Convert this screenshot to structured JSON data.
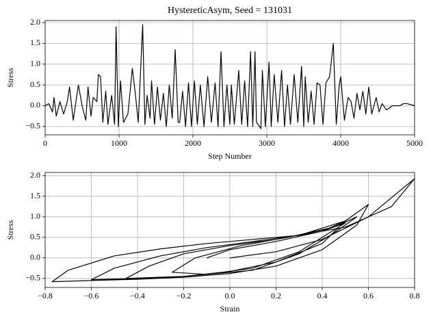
{
  "chart_data": [
    {
      "type": "line",
      "title": "HystereticAsym, Seed = 131031",
      "xlabel": "Step Number",
      "ylabel": "Stress",
      "color": "#000000",
      "grid": true,
      "x": [
        0,
        50,
        100,
        120,
        150,
        200,
        250,
        300,
        330,
        380,
        450,
        500,
        550,
        580,
        620,
        650,
        700,
        720,
        750,
        780,
        820,
        850,
        900,
        940,
        960,
        990,
        1020,
        1060,
        1120,
        1180,
        1220,
        1260,
        1320,
        1350,
        1380,
        1420,
        1440,
        1480,
        1520,
        1560,
        1600,
        1640,
        1680,
        1720,
        1760,
        1800,
        1820,
        1860,
        1900,
        1940,
        1980,
        2020,
        2060,
        2100,
        2150,
        2200,
        2250,
        2300,
        2340,
        2380,
        2420,
        2460,
        2500,
        2520,
        2560,
        2620,
        2660,
        2700,
        2740,
        2780,
        2810,
        2840,
        2860,
        2900,
        2920,
        2940,
        2980,
        3030,
        3060,
        3100,
        3150,
        3200,
        3240,
        3280,
        3320,
        3370,
        3420,
        3470,
        3500,
        3520,
        3560,
        3600,
        3640,
        3680,
        3720,
        3760,
        3800,
        3850,
        3900,
        3940,
        3980,
        4000,
        4050,
        4100,
        4140,
        4180,
        4220,
        4260,
        4300,
        4340,
        4380,
        4420,
        4480,
        4520,
        4560,
        4620,
        4700,
        4800,
        4850,
        4900,
        5000
      ],
      "values": [
        0,
        0.05,
        -0.15,
        0.2,
        -0.25,
        0.1,
        -0.2,
        0.1,
        0.45,
        -0.35,
        0.5,
        0,
        -0.35,
        0.45,
        -0.25,
        0.2,
        0.1,
        0.75,
        0.7,
        -0.4,
        0.35,
        -0.45,
        0.25,
        -0.45,
        1.9,
        -0.5,
        0.6,
        -0.4,
        -0.2,
        0.9,
        0.3,
        -0.4,
        1.95,
        -0.45,
        0.25,
        -0.3,
        0.6,
        -0.45,
        0.45,
        -0.35,
        0.3,
        -0.5,
        0.5,
        -0.3,
        1.35,
        -0.4,
        -0.4,
        0.35,
        -0.5,
        0.55,
        -0.5,
        0.6,
        -0.45,
        0.5,
        -0.5,
        0.7,
        -0.4,
        0.55,
        -0.5,
        1.3,
        -0.5,
        0.5,
        -0.45,
        0.5,
        -0.45,
        0.85,
        -0.45,
        0.6,
        -0.5,
        1.3,
        -0.5,
        1.3,
        -0.4,
        -0.5,
        -0.55,
        0.85,
        -0.5,
        1.05,
        -0.5,
        0.75,
        -0.4,
        0.85,
        -0.5,
        0.5,
        -0.45,
        0.75,
        -0.4,
        0.95,
        -0.5,
        0.7,
        -0.4,
        0.35,
        -0.45,
        0.55,
        0.5,
        -0.45,
        0.55,
        0.7,
        1.5,
        -0.45,
        0.5,
        0.7,
        -0.35,
        0.2,
        0.1,
        -0.3,
        0.3,
        -0.1,
        0.35,
        -0.2,
        0.45,
        -0.2,
        0.2,
        -0.15,
        0.05,
        -0.1,
        0,
        0,
        0.05,
        0.05,
        0
      ],
      "xlim": [
        0,
        5000
      ],
      "xticks": [
        0,
        1000,
        2000,
        3000,
        4000,
        5000
      ],
      "ylim": [
        -0.7,
        2.05
      ],
      "yticks": [
        {
          "value": -0.5,
          "label": "−0.5"
        },
        {
          "value": 0,
          "label": "0.0"
        },
        0.5,
        {
          "value": 1,
          "label": "1.0"
        },
        1.5,
        {
          "value": 2,
          "label": "2.0"
        }
      ]
    },
    {
      "type": "line",
      "xlabel": "Strain",
      "ylabel": "Stress",
      "color": "#000000",
      "grid": true,
      "x": [
        0,
        0.2,
        0.4,
        0.6,
        0.8,
        0.7,
        0.5,
        0.3,
        0.1,
        -0.1,
        -0.3,
        -0.5,
        -0.7,
        -0.77,
        -0.6,
        -0.4,
        -0.2,
        0,
        0.2,
        0.4,
        0.55,
        0.6,
        0.5,
        0.3,
        0.1,
        -0.1,
        -0.3,
        -0.5,
        -0.6,
        -0.4,
        -0.2,
        0,
        0.2,
        0.4,
        0.5,
        0.42,
        0.2,
        0,
        -0.2,
        -0.35,
        -0.45,
        -0.2,
        0.1,
        0.3,
        0.45,
        0.55,
        0.45,
        0.25,
        0.05,
        -0.15,
        -0.25,
        -0.1,
        0.1,
        0.3,
        0.5,
        0.4,
        0.2,
        0,
        -0.1
      ],
      "values": [
        0,
        0.15,
        0.45,
        1.0,
        1.93,
        1.25,
        0.75,
        0.55,
        0.45,
        0.35,
        0.22,
        0.05,
        -0.3,
        -0.58,
        -0.55,
        -0.52,
        -0.47,
        -0.38,
        -0.2,
        0.2,
        0.8,
        1.3,
        0.9,
        0.55,
        0.4,
        0.25,
        0.05,
        -0.25,
        -0.53,
        -0.5,
        -0.45,
        -0.33,
        -0.1,
        0.35,
        0.9,
        0.7,
        0.45,
        0.3,
        0.1,
        -0.2,
        -0.5,
        -0.45,
        -0.3,
        0.1,
        0.6,
        1.0,
        0.75,
        0.5,
        0.3,
        0,
        -0.35,
        -0.4,
        -0.25,
        0.15,
        0.85,
        0.65,
        0.4,
        0.2,
        0
      ],
      "xlim": [
        -0.8,
        0.8
      ],
      "xticks": [
        {
          "value": -0.8,
          "label": "−0.8"
        },
        {
          "value": -0.6,
          "label": "−0.6"
        },
        {
          "value": -0.4,
          "label": "−0.4"
        },
        {
          "value": -0.2,
          "label": "−0.2"
        },
        {
          "value": 0,
          "label": "0.0"
        },
        0.2,
        0.4,
        0.6,
        0.8
      ],
      "ylim": [
        -0.72,
        2.08
      ],
      "yticks": [
        {
          "value": -0.5,
          "label": "−0.5"
        },
        {
          "value": 0,
          "label": "0.0"
        },
        0.5,
        {
          "value": 1,
          "label": "1.0"
        },
        1.5,
        {
          "value": 2,
          "label": "2.0"
        }
      ]
    }
  ]
}
